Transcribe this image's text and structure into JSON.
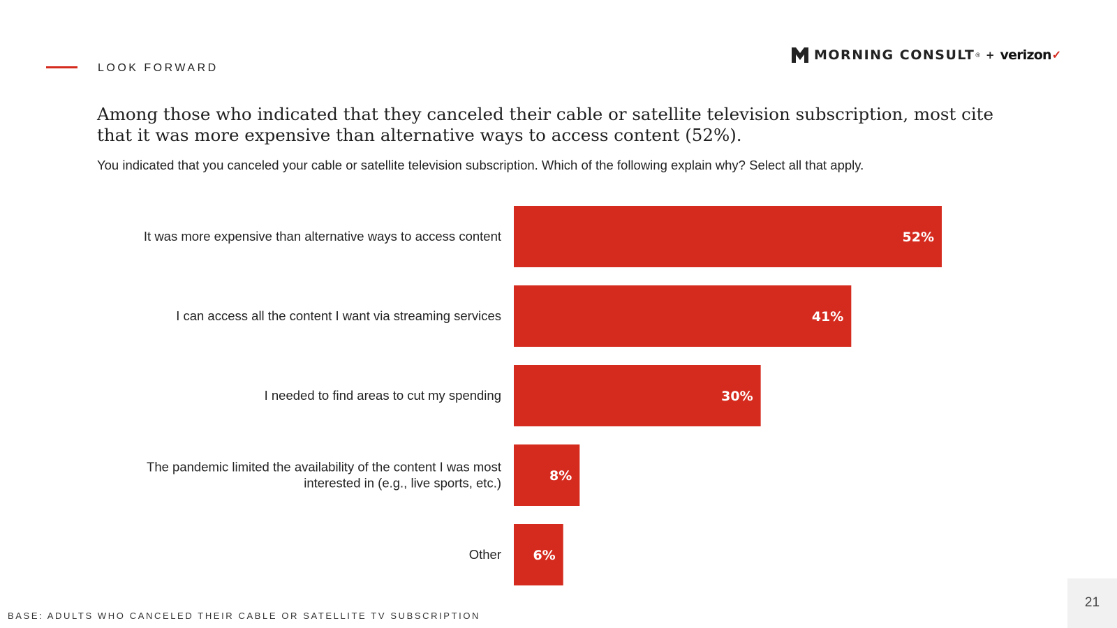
{
  "header": {
    "section_label": "LOOK FORWARD",
    "brand_primary": "MORNING CONSULT",
    "brand_tm": "®",
    "brand_plus": "+",
    "brand_partner": "verizon",
    "brand_check": "✓",
    "logo_icon": "morning-consult-m-icon"
  },
  "headline": "Among those who indicated that they canceled their cable or satellite television subscription, most cite that it was more expensive than alternative ways to access content (52%).",
  "question": "You indicated that you canceled your cable or satellite television subscription. Which of the following explain why? Select all that apply.",
  "chart_data": {
    "type": "bar",
    "orientation": "horizontal",
    "title": "",
    "xlabel": "",
    "ylabel": "",
    "xlim": [
      0,
      60
    ],
    "grid": false,
    "bar_color": "#d52b1e",
    "categories": [
      [
        "It was more expensive than alternative ways to access content"
      ],
      [
        "I can access all the content I want via streaming services"
      ],
      [
        "I needed to find areas to cut my spending"
      ],
      [
        "The pandemic limited the availability of the content I was most",
        "interested in (e.g., live sports, etc.)"
      ],
      [
        "Other"
      ]
    ],
    "values": [
      52,
      41,
      30,
      8,
      6
    ],
    "value_labels": [
      "52%",
      "41%",
      "30%",
      "8%",
      "6%"
    ]
  },
  "footer": {
    "base_note": "BASE: ADULTS WHO CANCELED THEIR CABLE OR SATELLITE TV SUBSCRIPTION",
    "page_number": "21"
  },
  "colors": {
    "accent": "#d52b1e",
    "text": "#1a1a1a"
  }
}
